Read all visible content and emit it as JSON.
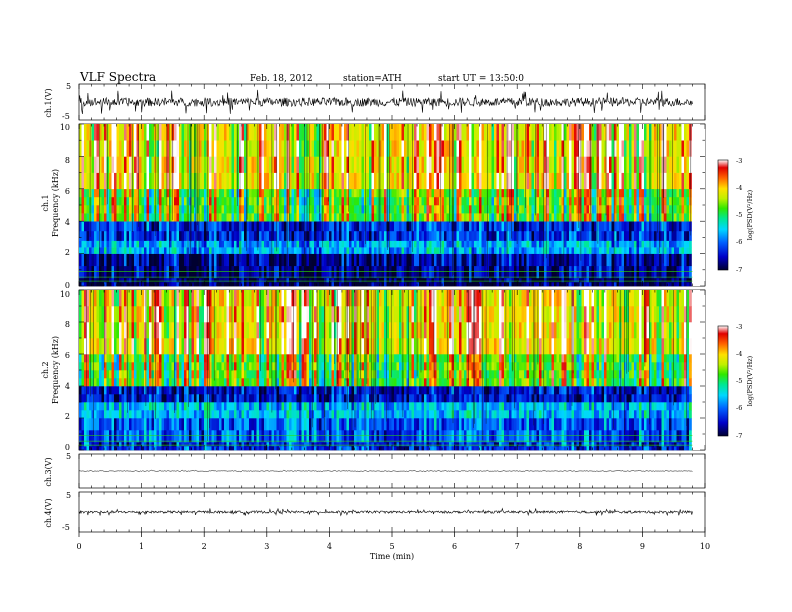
{
  "header": {
    "title": "VLF Spectra",
    "date": "Feb. 18, 2012",
    "station": "station=ATH",
    "start": "start UT = 13:50:0"
  },
  "colors": {
    "spectrogram_scale": [
      "#000030",
      "#0000c8",
      "#0060ff",
      "#00d8ff",
      "#00e890",
      "#30e800",
      "#c0f000",
      "#ffe000",
      "#ff6000",
      "#e00000",
      "#ffffff"
    ],
    "trace": "#000000",
    "frame": "#000000"
  },
  "chart_data": [
    {
      "type": "line",
      "panel": "ch1-waveform",
      "ylabel": "ch.1(V)",
      "ylim": [
        -5,
        5
      ],
      "ytick_labels": [
        "5",
        "-5"
      ],
      "description_values": {
        "baseline": 0,
        "typical_amplitude": 1.2,
        "spike_amplitude": 3.5
      }
    },
    {
      "type": "heatmap",
      "panel": "ch1-spectrogram",
      "ylabel_channel": "ch.1",
      "ylabel": "Frequency (kHz)",
      "ylim": [
        0,
        10
      ],
      "ytick_labels": [
        "0",
        "2",
        "4",
        "6",
        "8",
        "10"
      ],
      "colorbar": {
        "label": "log(PSD(V²/Hz)",
        "range": [
          -7,
          -3
        ],
        "tick_labels": [
          "-3",
          "-4",
          "-5",
          "-6",
          "-7"
        ]
      },
      "band_levels": [
        {
          "kHz": [
            0,
            0.5
          ],
          "log_psd": -7
        },
        {
          "kHz": [
            0.5,
            2.0
          ],
          "log_psd": -6.8
        },
        {
          "kHz": [
            2.0,
            2.8
          ],
          "log_psd": -6.0
        },
        {
          "kHz": [
            2.8,
            4.0
          ],
          "log_psd": -6.5
        },
        {
          "kHz": [
            4.0,
            6.0
          ],
          "log_psd": -5.0
        },
        {
          "kHz": [
            6.0,
            10.0
          ],
          "log_psd": -4.3
        }
      ]
    },
    {
      "type": "heatmap",
      "panel": "ch2-spectrogram",
      "ylabel_channel": "ch.2",
      "ylabel": "Frequency (kHz)",
      "ylim": [
        0,
        10
      ],
      "ytick_labels": [
        "0",
        "2",
        "4",
        "6",
        "8",
        "10"
      ],
      "colorbar": {
        "label": "log(PSD(V²/Hz)",
        "range": [
          -7,
          -3
        ],
        "tick_labels": [
          "-3",
          "-4",
          "-5",
          "-6",
          "-7"
        ]
      },
      "band_levels": [
        {
          "kHz": [
            0,
            0.5
          ],
          "log_psd": -6.5
        },
        {
          "kHz": [
            0.5,
            2.0
          ],
          "log_psd": -6.3
        },
        {
          "kHz": [
            2.0,
            3.0
          ],
          "log_psd": -5.9
        },
        {
          "kHz": [
            3.0,
            4.0
          ],
          "log_psd": -6.6
        },
        {
          "kHz": [
            4.0,
            6.0
          ],
          "log_psd": -5.0
        },
        {
          "kHz": [
            6.0,
            10.0
          ],
          "log_psd": -4.3
        }
      ]
    },
    {
      "type": "line",
      "panel": "ch3-waveform",
      "ylabel": "ch.3(V)",
      "ylim": [
        -5,
        5
      ],
      "ytick_labels": [
        "5"
      ],
      "description_values": {
        "baseline": 0,
        "typical_amplitude": 0.1
      }
    },
    {
      "type": "line",
      "panel": "ch4-waveform",
      "ylabel": "ch.4(V)",
      "ylim": [
        -5,
        5
      ],
      "ytick_labels": [
        "5",
        "-5"
      ],
      "description_values": {
        "baseline": 0,
        "typical_amplitude": 0.3
      }
    },
    {
      "type": "axis",
      "panel": "time-axis",
      "xlabel": "Time (min)",
      "xlim": [
        0,
        10
      ],
      "xtick_labels": [
        "0",
        "1",
        "2",
        "3",
        "4",
        "5",
        "6",
        "7",
        "8",
        "9",
        "10"
      ],
      "data_end_min": 9.8
    }
  ]
}
